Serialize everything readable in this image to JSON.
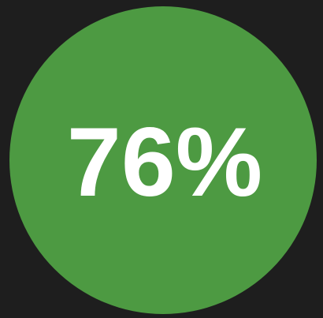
{
  "badge": {
    "label": "76%"
  }
}
